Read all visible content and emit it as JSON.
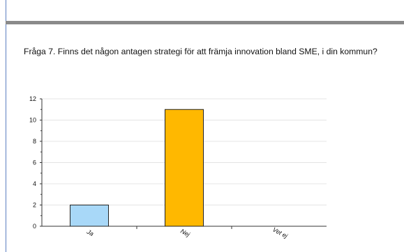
{
  "question": {
    "text": "Fråga 7. Finns det någon antagen strategi för att främja innovation bland SME, i din kommun?"
  },
  "colors": {
    "ja": "#a8d8f8",
    "nej": "#ffb800",
    "frame_border": "#5b7fc0",
    "header_band": "#8a8a8a"
  },
  "chart_data": {
    "type": "bar",
    "categories": [
      "Ja",
      "Nej",
      "Vet ej"
    ],
    "values": [
      2,
      11,
      0
    ],
    "ylim": [
      0,
      12
    ],
    "yticks": [
      "0",
      "2",
      "4",
      "6",
      "8",
      "10",
      "12"
    ],
    "grid": true,
    "legend": "none"
  }
}
